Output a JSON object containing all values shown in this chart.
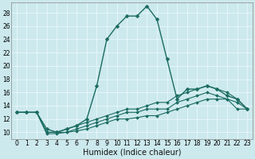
{
  "title": "",
  "xlabel": "Humidex (Indice chaleur)",
  "ylabel": "",
  "bg_color": "#cce9ed",
  "grid_color": "#e8f8fa",
  "line_color": "#1a6b60",
  "xlim": [
    -0.5,
    23.5
  ],
  "ylim": [
    9,
    29.5
  ],
  "yticks": [
    10,
    12,
    14,
    16,
    18,
    20,
    22,
    24,
    26,
    28
  ],
  "xticks": [
    0,
    1,
    2,
    3,
    4,
    5,
    6,
    7,
    8,
    9,
    10,
    11,
    12,
    13,
    14,
    15,
    16,
    17,
    18,
    19,
    20,
    21,
    22,
    23
  ],
  "series": [
    {
      "x": [
        0,
        1,
        2,
        3,
        4,
        5,
        6,
        7,
        8,
        9,
        10,
        11,
        12,
        13,
        14,
        15,
        16,
        17,
        18,
        19,
        20,
        21,
        22,
        23
      ],
      "y": [
        13.0,
        13.0,
        13.0,
        10.5,
        10.0,
        10.5,
        11.0,
        12.0,
        17.0,
        24.0,
        26.0,
        27.5,
        27.5,
        29.0,
        27.0,
        21.0,
        15.0,
        16.5,
        16.5,
        17.0,
        16.5,
        15.5,
        15.0,
        13.5
      ],
      "marker": "D",
      "marker_size": 2.5,
      "linewidth": 1.0
    },
    {
      "x": [
        0,
        1,
        2,
        3,
        4,
        5,
        6,
        7,
        8,
        9,
        10,
        11,
        12,
        13,
        14,
        15,
        16,
        17,
        18,
        19,
        20,
        21,
        22,
        23
      ],
      "y": [
        13.0,
        13.0,
        13.0,
        10.0,
        10.0,
        10.5,
        11.0,
        11.5,
        12.0,
        12.5,
        13.0,
        13.5,
        13.5,
        14.0,
        14.5,
        14.5,
        15.5,
        16.0,
        16.5,
        17.0,
        16.5,
        16.0,
        15.0,
        13.5
      ],
      "marker": "D",
      "marker_size": 2.0,
      "linewidth": 0.8
    },
    {
      "x": [
        0,
        1,
        2,
        3,
        4,
        5,
        6,
        7,
        8,
        9,
        10,
        11,
        12,
        13,
        14,
        15,
        16,
        17,
        18,
        19,
        20,
        21,
        22,
        23
      ],
      "y": [
        13.0,
        13.0,
        13.0,
        10.0,
        10.0,
        10.0,
        10.5,
        11.0,
        11.5,
        12.0,
        12.5,
        13.0,
        13.0,
        13.5,
        13.5,
        13.5,
        14.5,
        15.0,
        15.5,
        16.0,
        15.5,
        15.0,
        14.5,
        13.5
      ],
      "marker": "D",
      "marker_size": 2.0,
      "linewidth": 0.8
    },
    {
      "x": [
        0,
        1,
        2,
        3,
        4,
        5,
        6,
        7,
        8,
        9,
        10,
        11,
        12,
        13,
        14,
        15,
        16,
        17,
        18,
        19,
        20,
        21,
        22,
        23
      ],
      "y": [
        13.0,
        13.0,
        13.0,
        9.8,
        9.8,
        10.0,
        10.2,
        10.5,
        11.0,
        11.5,
        12.0,
        12.0,
        12.2,
        12.5,
        12.5,
        13.0,
        13.5,
        14.0,
        14.5,
        15.0,
        15.0,
        15.0,
        13.5,
        13.5
      ],
      "marker": "D",
      "marker_size": 2.0,
      "linewidth": 0.8
    }
  ],
  "spine_color": "#888888",
  "tick_fontsize": 5.5,
  "xlabel_fontsize": 7.0
}
